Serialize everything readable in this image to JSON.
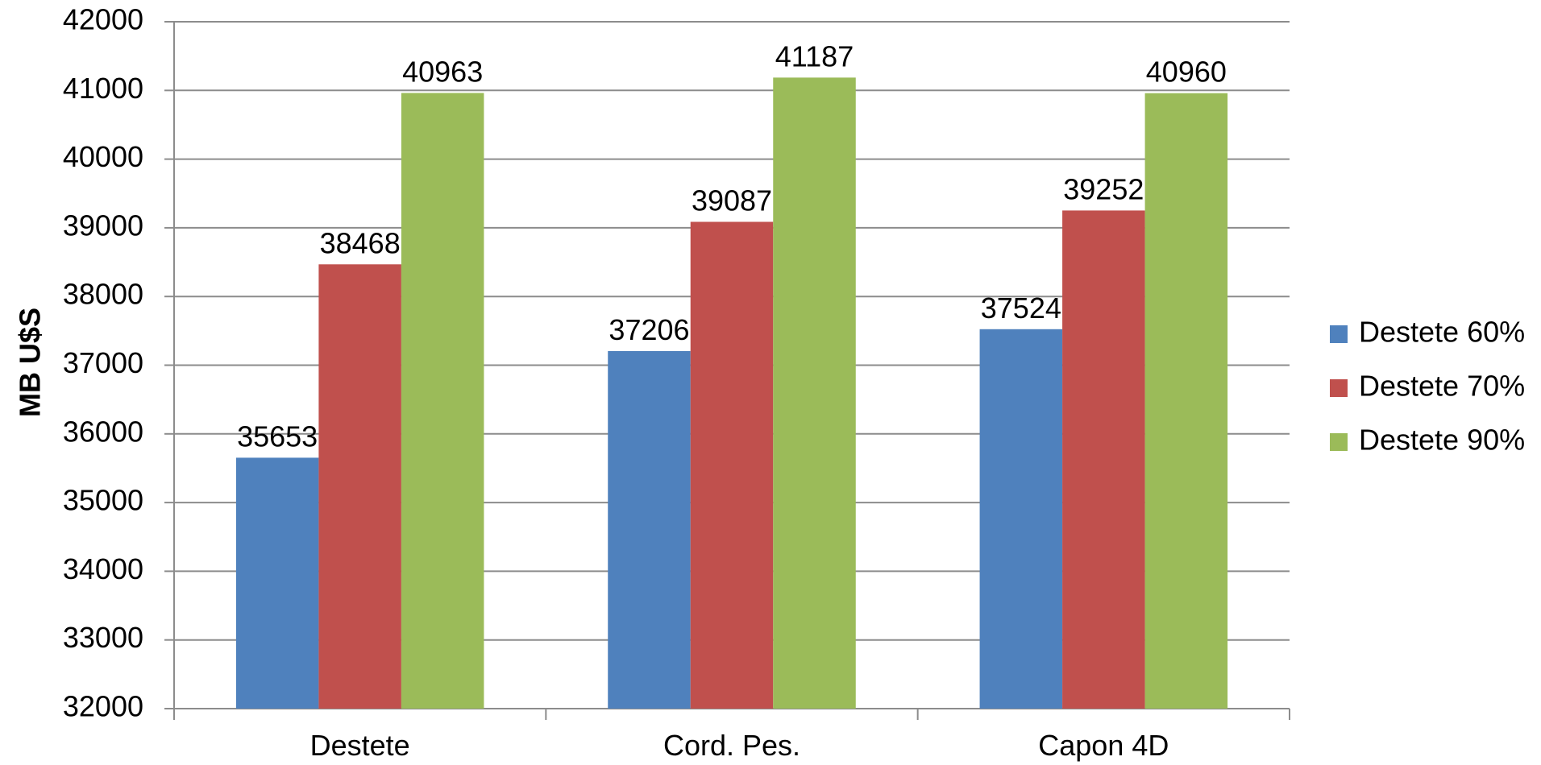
{
  "chart_data": {
    "type": "bar",
    "categories": [
      "Destete",
      "Cord. Pes.",
      "Capon 4D"
    ],
    "series": [
      {
        "name": "Destete 60%",
        "color": "#4F81BD",
        "values": [
          35653,
          37206,
          37524
        ]
      },
      {
        "name": "Destete 70%",
        "color": "#C0504D",
        "values": [
          38468,
          39087,
          39252
        ]
      },
      {
        "name": "Destete 90%",
        "color": "#9BBB59",
        "values": [
          40963,
          41187,
          40960
        ]
      }
    ],
    "ylabel": "MB U$S",
    "xlabel": "",
    "ylim": [
      32000,
      42000
    ],
    "yticks": [
      32000,
      33000,
      34000,
      35000,
      36000,
      37000,
      38000,
      39000,
      40000,
      41000,
      42000
    ],
    "grid": true,
    "legend_position": "right"
  }
}
